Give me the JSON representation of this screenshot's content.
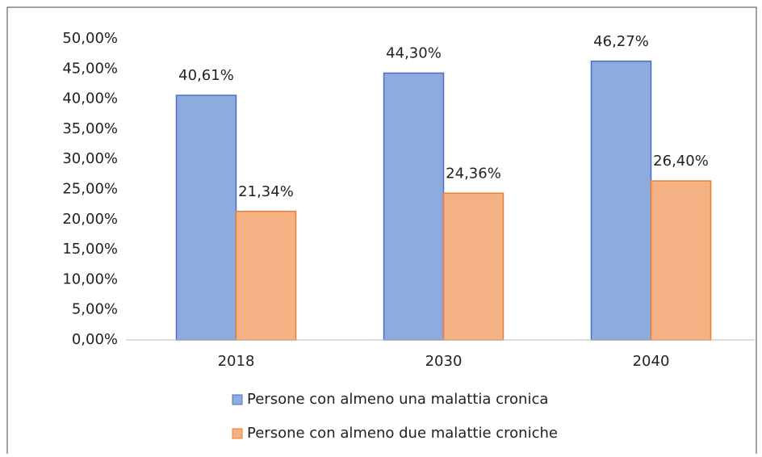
{
  "chart_data": {
    "type": "bar",
    "categories": [
      "2018",
      "2030",
      "2040"
    ],
    "series": [
      {
        "name": "Persone con almeno una malattia cronica",
        "color": "#8faadc",
        "edge": "#4472c4",
        "values": [
          40.61,
          44.3,
          46.27
        ],
        "value_labels": [
          "40,61%",
          "44,30%",
          "46,27%"
        ]
      },
      {
        "name": "Persone con almeno due malattie croniche",
        "color": "#f4b183",
        "edge": "#ed7d31",
        "values": [
          21.34,
          24.36,
          26.4
        ],
        "value_labels": [
          "21,34%",
          "24,36%",
          "26,40%"
        ]
      }
    ],
    "ylim": [
      0,
      50
    ],
    "yticks": [
      {
        "value": 0,
        "label": "0,00%"
      },
      {
        "value": 5,
        "label": "5,00%"
      },
      {
        "value": 10,
        "label": "10,00%"
      },
      {
        "value": 15,
        "label": "15,00%"
      },
      {
        "value": 20,
        "label": "20,00%"
      },
      {
        "value": 25,
        "label": "25,00%"
      },
      {
        "value": 30,
        "label": "30,00%"
      },
      {
        "value": 35,
        "label": "35,00%"
      },
      {
        "value": 40,
        "label": "40,00%"
      },
      {
        "value": 45,
        "label": "45,00%"
      },
      {
        "value": 50,
        "label": "50,00%"
      }
    ],
    "grid": false
  }
}
